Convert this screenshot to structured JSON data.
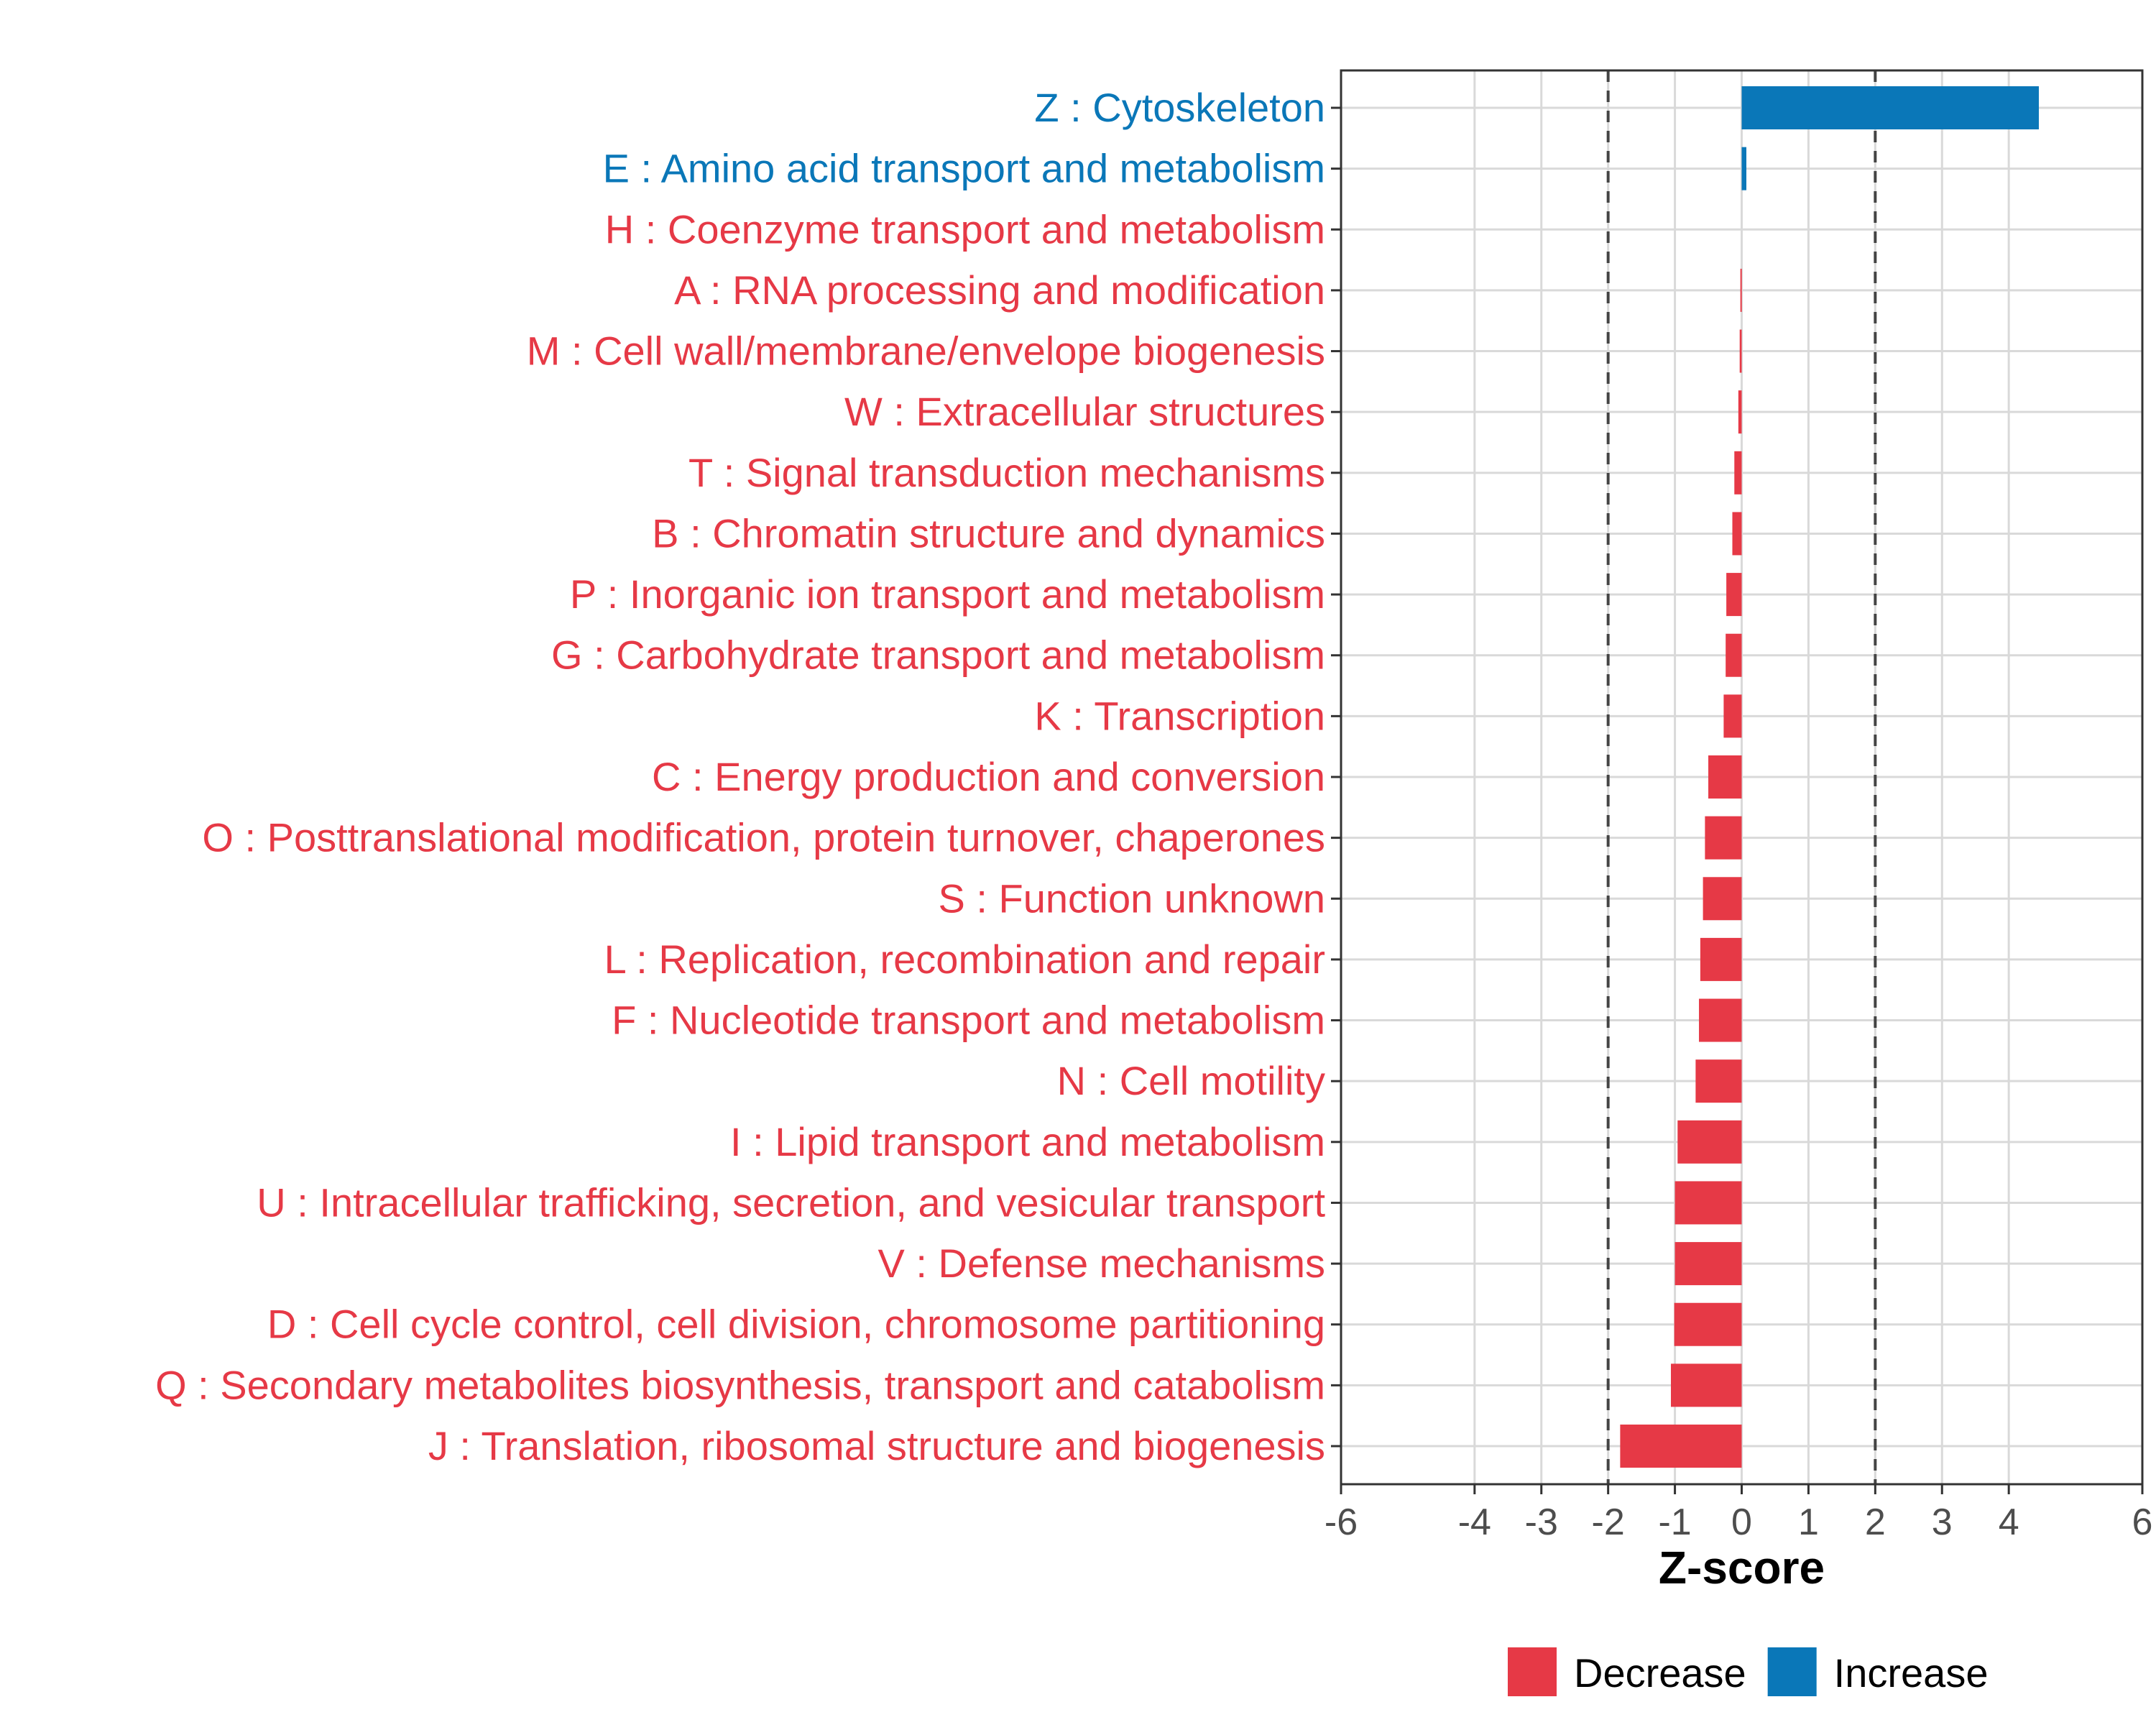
{
  "chart_data": {
    "type": "bar",
    "orientation": "horizontal",
    "xlabel": "Z-score",
    "ylabel": "",
    "xlim": [
      -6,
      6
    ],
    "x_ticks": [
      -6,
      -4,
      -3,
      -2,
      -1,
      0,
      1,
      2,
      3,
      4,
      6
    ],
    "reference_lines": [
      -2,
      2
    ],
    "grid": true,
    "legend_position": "bottom",
    "colors": {
      "Decrease": "#e63946",
      "Increase": "#0a77b8"
    },
    "legend": [
      {
        "label": "Decrease",
        "color": "#e63946"
      },
      {
        "label": "Increase",
        "color": "#0a77b8"
      }
    ],
    "categories": [
      "Z : Cytoskeleton",
      "E : Amino acid transport and metabolism",
      "H : Coenzyme transport and metabolism",
      "A : RNA processing and modification",
      "M : Cell wall/membrane/envelope biogenesis",
      "W : Extracellular structures",
      "T : Signal transduction mechanisms",
      "B : Chromatin structure and dynamics",
      "P : Inorganic ion transport and metabolism",
      "G : Carbohydrate transport and metabolism",
      "K : Transcription",
      "C : Energy production and conversion",
      "O : Posttranslational modification, protein turnover, chaperones",
      "S : Function unknown",
      "L : Replication, recombination and repair",
      "F : Nucleotide transport and metabolism",
      "N : Cell motility",
      "I : Lipid transport and metabolism",
      "U : Intracellular trafficking, secretion, and vesicular transport",
      "V : Defense mechanisms",
      "D : Cell cycle control, cell division, chromosome partitioning",
      "Q : Secondary metabolites biosynthesis, transport and catabolism",
      "J : Translation, ribosomal structure and biogenesis"
    ],
    "values": [
      4.45,
      0.07,
      0.0,
      -0.02,
      -0.03,
      -0.05,
      -0.11,
      -0.14,
      -0.23,
      -0.24,
      -0.27,
      -0.5,
      -0.55,
      -0.58,
      -0.62,
      -0.64,
      -0.69,
      -0.96,
      -1.0,
      -1.0,
      -1.01,
      -1.06,
      -1.82
    ],
    "groups": [
      "Increase",
      "Increase",
      "Decrease",
      "Decrease",
      "Decrease",
      "Decrease",
      "Decrease",
      "Decrease",
      "Decrease",
      "Decrease",
      "Decrease",
      "Decrease",
      "Decrease",
      "Decrease",
      "Decrease",
      "Decrease",
      "Decrease",
      "Decrease",
      "Decrease",
      "Decrease",
      "Decrease",
      "Decrease",
      "Decrease"
    ]
  }
}
